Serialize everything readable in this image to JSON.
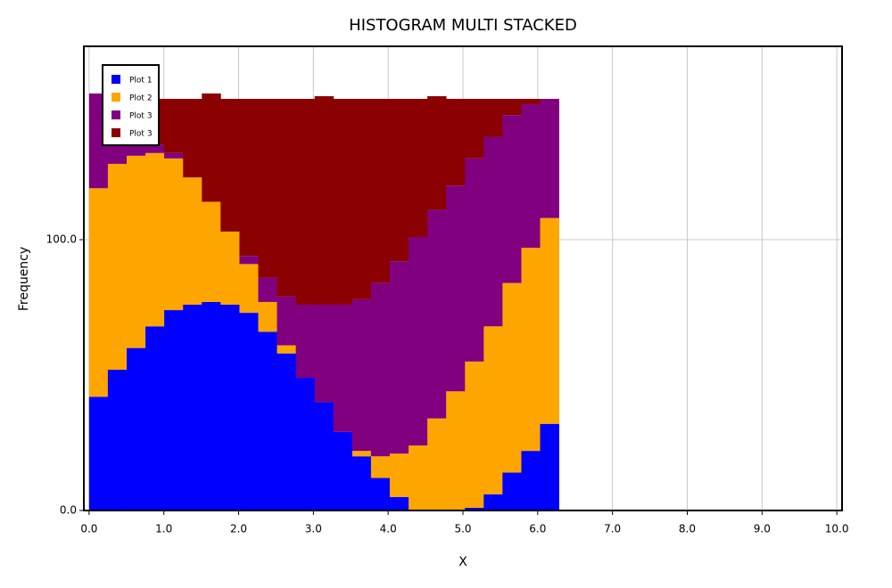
{
  "chart_data": {
    "type": "histogram",
    "stacked": true,
    "title": "HISTOGRAM MULTI STACKED",
    "x_label": "X",
    "y_label": "Frequency",
    "bins": [
      0,
      0.251,
      0.503,
      0.754,
      1.005,
      1.257,
      1.508,
      1.759,
      2.011,
      2.262,
      2.513,
      2.765,
      3.016,
      3.267,
      3.519,
      3.77,
      4.021,
      4.273,
      4.524,
      4.775,
      5.027,
      5.278,
      5.529,
      5.781,
      6.032,
      6.283
    ],
    "series": [
      {
        "name": "Plot 1",
        "color": "#0000ff",
        "values": [
          42,
          52,
          60,
          68,
          74,
          76,
          77,
          76,
          73,
          66,
          58,
          49,
          40,
          29,
          20,
          12,
          5,
          0,
          0,
          0,
          1,
          6,
          14,
          22,
          32
        ]
      },
      {
        "name": "Plot 2",
        "color": "#ffa500",
        "values": [
          77,
          76,
          71,
          64,
          56,
          47,
          37,
          27,
          18,
          11,
          3,
          0,
          0,
          0,
          2,
          8,
          16,
          24,
          34,
          44,
          54,
          62,
          70,
          75,
          76
        ]
      },
      {
        "name": "Plot 3",
        "color": "#800080",
        "values": [
          35,
          24,
          9,
          3,
          2,
          0,
          0,
          0,
          3,
          9,
          18,
          27,
          36,
          47,
          56,
          64,
          71,
          77,
          77,
          76,
          75,
          70,
          62,
          53,
          44
        ]
      },
      {
        "name": "Plot 3",
        "color": "#8b0000",
        "values": [
          0,
          0,
          12,
          17,
          20,
          29,
          40,
          49,
          58,
          66,
          73,
          76,
          77,
          76,
          74,
          68,
          60,
          51,
          42,
          32,
          22,
          14,
          6,
          2,
          0
        ]
      }
    ],
    "xlim": [
      -0.07,
      10.07
    ],
    "ylim": [
      0,
      171.4
    ],
    "xticks": [
      {
        "value": 0,
        "label": "0.0"
      },
      {
        "value": 1,
        "label": "1.0"
      },
      {
        "value": 2,
        "label": "2.0"
      },
      {
        "value": 3,
        "label": "3.0"
      },
      {
        "value": 4,
        "label": "4.0"
      },
      {
        "value": 5,
        "label": "5.0"
      },
      {
        "value": 6,
        "label": "6.0"
      },
      {
        "value": 7,
        "label": "7.0"
      },
      {
        "value": 8,
        "label": "8.0"
      },
      {
        "value": 9,
        "label": "9.0"
      },
      {
        "value": 10,
        "label": "10.0"
      }
    ],
    "yticks": [
      {
        "value": 0,
        "label": "0.0"
      },
      {
        "value": 100,
        "label": "100.0"
      }
    ],
    "grid": true,
    "legend": "upper-left"
  }
}
